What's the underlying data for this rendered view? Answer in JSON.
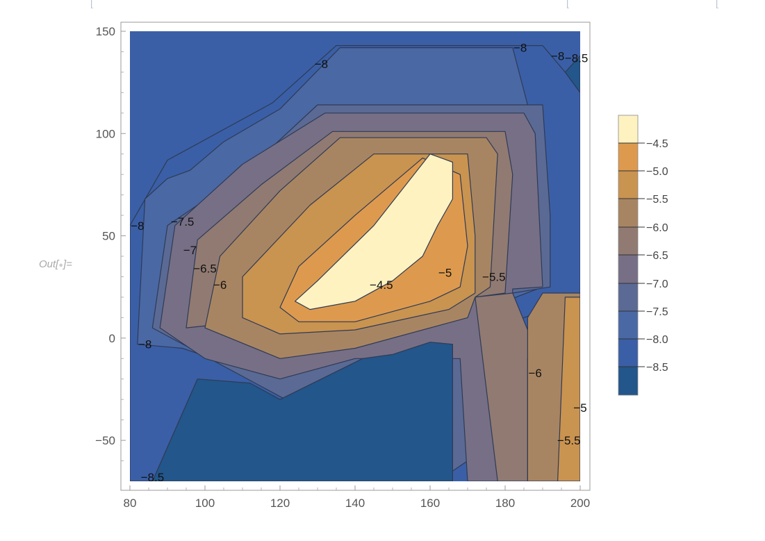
{
  "notebook": {
    "out_prefix": "Out[",
    "out_suffix": "]=",
    "top_fragments": [
      "[",
      "[",
      "["
    ]
  },
  "colors": {
    "frame": "#999999",
    "contour_line": "#2e3a55",
    "band_8_5": "#23568a",
    "band_8_0": "#3a5fa6",
    "band_7_5": "#4a68a4",
    "band_7_0": "#5a6a94",
    "band_6_5": "#776f86",
    "band_6_0": "#907a72",
    "band_5_5": "#a88562",
    "band_5_0": "#c99350",
    "band_4_5": "#dd9a4e",
    "band_top": "#fdf2c0"
  },
  "chart_data": {
    "type": "contour",
    "xlim": [
      80,
      200
    ],
    "ylim": [
      -70,
      150
    ],
    "x_ticks": [
      "80",
      "100",
      "120",
      "140",
      "160",
      "180",
      "200"
    ],
    "y_ticks": [
      "150",
      "100",
      "50",
      "0",
      "−50"
    ],
    "contour_levels": [
      -8.5,
      -8.0,
      -7.5,
      -7.0,
      -6.5,
      -6.0,
      -5.5,
      -5.0,
      -4.5
    ],
    "legend": {
      "placement": "right",
      "labels": [
        "−4.5",
        "−5.0",
        "−5.5",
        "−6.0",
        "−6.5",
        "−7.0",
        "−7.5",
        "−8.0",
        "−8.5"
      ]
    },
    "contour_labels": [
      {
        "text": "−8",
        "x": 131,
        "y": 134
      },
      {
        "text": "−8",
        "x": 184,
        "y": 142
      },
      {
        "text": "−8",
        "x": 194,
        "y": 138
      },
      {
        "text": "−8.5",
        "x": 199,
        "y": 137
      },
      {
        "text": "−8",
        "x": 82,
        "y": 55
      },
      {
        "text": "−7.5",
        "x": 94,
        "y": 57
      },
      {
        "text": "−7",
        "x": 96,
        "y": 43
      },
      {
        "text": "−6.5",
        "x": 100,
        "y": 34
      },
      {
        "text": "−6",
        "x": 104,
        "y": 26
      },
      {
        "text": "−4.5",
        "x": 147,
        "y": 26
      },
      {
        "text": "−5",
        "x": 164,
        "y": 32
      },
      {
        "text": "−5.5",
        "x": 177,
        "y": 30
      },
      {
        "text": "−8",
        "x": 84,
        "y": -3
      },
      {
        "text": "−6",
        "x": 188,
        "y": -17
      },
      {
        "text": "−5",
        "x": 200,
        "y": -34
      },
      {
        "text": "−5.5",
        "x": 197,
        "y": -50
      },
      {
        "text": "−8.5",
        "x": 86,
        "y": -68
      }
    ],
    "regions": [
      {
        "level": "band_8_0",
        "points": [
          [
            80,
            -70
          ],
          [
            80,
            55
          ],
          [
            90,
            87
          ],
          [
            118,
            115
          ],
          [
            135,
            143
          ],
          [
            190,
            143
          ],
          [
            196,
            130
          ],
          [
            200,
            120
          ],
          [
            200,
            20
          ],
          [
            185,
            10
          ],
          [
            172,
            4
          ],
          [
            165,
            -70
          ]
        ]
      },
      {
        "level": "band_7_5",
        "points": [
          [
            82,
            -3
          ],
          [
            84,
            68
          ],
          [
            90,
            78
          ],
          [
            96,
            82
          ],
          [
            105,
            96
          ],
          [
            120,
            112
          ],
          [
            136,
            142
          ],
          [
            182,
            142
          ],
          [
            188,
            100
          ],
          [
            190,
            40
          ],
          [
            190,
            25
          ],
          [
            180,
            18
          ],
          [
            170,
            10
          ],
          [
            160,
            4
          ],
          [
            140,
            0
          ],
          [
            125,
            -5
          ],
          [
            110,
            -15
          ],
          [
            94,
            -5
          ]
        ]
      },
      {
        "level": "band_7_0",
        "points": [
          [
            86,
            5
          ],
          [
            90,
            55
          ],
          [
            110,
            80
          ],
          [
            130,
            114
          ],
          [
            190,
            114
          ],
          [
            192,
            60
          ],
          [
            192,
            25
          ],
          [
            182,
            22
          ],
          [
            182,
            0
          ],
          [
            180,
            -20
          ],
          [
            170,
            -60
          ],
          [
            162,
            -70
          ]
        ]
      },
      {
        "level": "band_6_5",
        "points": [
          [
            88,
            5
          ],
          [
            92,
            55
          ],
          [
            110,
            85
          ],
          [
            132,
            110
          ],
          [
            185,
            110
          ],
          [
            188,
            100
          ],
          [
            190,
            25
          ],
          [
            182,
            24
          ],
          [
            182,
            -70
          ],
          [
            170,
            -70
          ],
          [
            168,
            -10
          ],
          [
            140,
            -10
          ],
          [
            120,
            -20
          ],
          [
            100,
            -10
          ]
        ]
      },
      {
        "level": "band_6_0",
        "points": [
          [
            95,
            5
          ],
          [
            98,
            48
          ],
          [
            115,
            75
          ],
          [
            134,
            101
          ],
          [
            180,
            101
          ],
          [
            182,
            80
          ],
          [
            180,
            22
          ],
          [
            172,
            20
          ],
          [
            178,
            -70
          ],
          [
            186,
            -70
          ],
          [
            186,
            -10
          ],
          [
            188,
            -5
          ],
          [
            182,
            22
          ]
        ]
      },
      {
        "level": "band_5_5",
        "points": [
          [
            100,
            5
          ],
          [
            104,
            40
          ],
          [
            120,
            72
          ],
          [
            136,
            98
          ],
          [
            175,
            98
          ],
          [
            178,
            90
          ],
          [
            176,
            25
          ],
          [
            172,
            20
          ],
          [
            170,
            10
          ],
          [
            140,
            -5
          ],
          [
            120,
            -10
          ]
        ]
      },
      {
        "level": "band_5_0",
        "points": [
          [
            110,
            10
          ],
          [
            110,
            30
          ],
          [
            128,
            65
          ],
          [
            145,
            90
          ],
          [
            170,
            90
          ],
          [
            172,
            50
          ],
          [
            172,
            22
          ],
          [
            165,
            14
          ],
          [
            140,
            4
          ],
          [
            120,
            2
          ]
        ]
      },
      {
        "level": "band_4_5",
        "points": [
          [
            120,
            15
          ],
          [
            125,
            35
          ],
          [
            140,
            60
          ],
          [
            158,
            88
          ],
          [
            168,
            80
          ],
          [
            170,
            45
          ],
          [
            168,
            25
          ],
          [
            160,
            18
          ],
          [
            140,
            8
          ],
          [
            125,
            8
          ]
        ]
      },
      {
        "level": "band_top",
        "points": [
          [
            124,
            18
          ],
          [
            130,
            28
          ],
          [
            145,
            55
          ],
          [
            160,
            90
          ],
          [
            166,
            86
          ],
          [
            166,
            68
          ],
          [
            162,
            55
          ],
          [
            158,
            40
          ],
          [
            150,
            28
          ],
          [
            140,
            18
          ],
          [
            128,
            14
          ]
        ]
      },
      {
        "level": "band_8_5",
        "points": [
          [
            86,
            -70
          ],
          [
            98,
            -20
          ],
          [
            112,
            -22
          ],
          [
            120,
            -30
          ],
          [
            142,
            -10
          ],
          [
            150,
            -8
          ],
          [
            160,
            -2
          ],
          [
            166,
            -3
          ],
          [
            166,
            -70
          ]
        ]
      },
      {
        "level": "band_8_5",
        "points": [
          [
            196,
            130
          ],
          [
            200,
            138
          ],
          [
            200,
            120
          ]
        ]
      },
      {
        "level": "band_5_5",
        "points": [
          [
            190,
            22
          ],
          [
            200,
            22
          ],
          [
            200,
            -70
          ],
          [
            186,
            -70
          ],
          [
            186,
            10
          ]
        ]
      },
      {
        "level": "band_5_0",
        "points": [
          [
            196,
            20
          ],
          [
            200,
            20
          ],
          [
            200,
            -70
          ],
          [
            194,
            -70
          ]
        ]
      }
    ]
  }
}
